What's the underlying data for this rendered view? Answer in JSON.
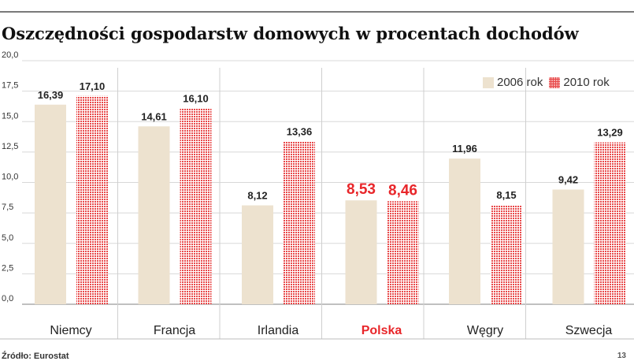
{
  "title": "Oszczędności gospodarstw domowych w procentach dochodów",
  "source": "Źródło: Eurostat",
  "page_number": "13",
  "legend": {
    "a": "2006 rok",
    "b": "2010 rok"
  },
  "colors": {
    "bar2006": "#ede2cf",
    "bar2010": "#e8494a",
    "highlight": "#e8262a",
    "axisText": "#333333",
    "grid": "#d8d8d8"
  },
  "chart_data": {
    "type": "bar",
    "title": "Oszczędności gospodarstw domowych w procentach dochodów",
    "categories": [
      "Niemcy",
      "Francja",
      "Irlandia",
      "Polska",
      "Węgry",
      "Szwecja"
    ],
    "highlight_category": "Polska",
    "series": [
      {
        "name": "2006 rok",
        "values": [
          16.39,
          14.61,
          8.12,
          8.53,
          11.96,
          9.42
        ],
        "labels": [
          "16,39",
          "14,61",
          "8,12",
          "8,53",
          "11,96",
          "9,42"
        ]
      },
      {
        "name": "2010 rok",
        "values": [
          17.1,
          16.1,
          13.36,
          8.46,
          8.15,
          13.29
        ],
        "labels": [
          "17,10",
          "16,10",
          "13,36",
          "8,46",
          "8,15",
          "13,29"
        ]
      }
    ],
    "yticks": [
      0,
      2.5,
      5.0,
      7.5,
      10.0,
      12.5,
      15.0,
      17.5,
      20.0
    ],
    "ytick_labels": [
      "0,0",
      "2,5",
      "5,0",
      "7,5",
      "10,0",
      "12,5",
      "15,0",
      "17,5",
      "20,0"
    ],
    "ylim": [
      0,
      20
    ],
    "xlabel": "",
    "ylabel": "",
    "legend_position": "top-right"
  }
}
